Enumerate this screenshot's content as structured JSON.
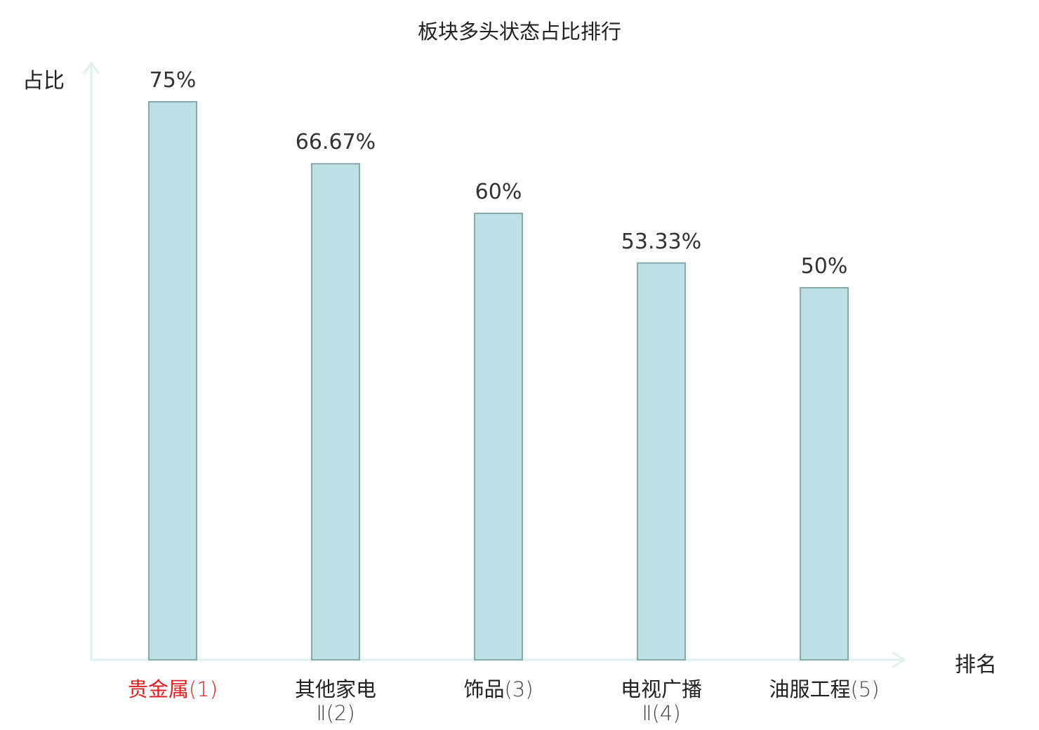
{
  "chart_data": {
    "type": "bar",
    "title": "板块多头状态占比排行",
    "ylabel": "占比",
    "xlabel": "排名",
    "unit": "%",
    "ylim": [
      0,
      80
    ],
    "grid": false,
    "categories": [
      {
        "name": "贵金属",
        "rank": "(1)"
      },
      {
        "name": "其他家电",
        "sub": "Ⅱ",
        "rank": "(2)"
      },
      {
        "name": "饰品",
        "rank": "(3)"
      },
      {
        "name": "电视广播",
        "sub": "Ⅱ",
        "rank": "(4)"
      },
      {
        "name": "油服工程",
        "rank": "(5)"
      }
    ],
    "values": [
      75,
      66.67,
      60,
      53.33,
      50
    ],
    "value_labels": [
      "75%",
      "66.67%",
      "60%",
      "53.33%",
      "50%"
    ],
    "colors": {
      "bar_fill": "#bde0e2",
      "bar_stroke": "#86a9aa",
      "axis": "#dff2ef",
      "highlight_label": "#e02020"
    }
  }
}
